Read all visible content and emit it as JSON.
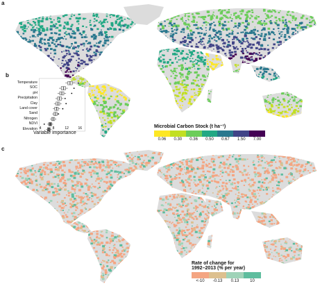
{
  "panels": {
    "a": {
      "letter": "a"
    },
    "b": {
      "letter": "b"
    },
    "c": {
      "letter": "c"
    }
  },
  "colors": {
    "land_background": "#dcdcdc",
    "stock_palette": [
      "#fde725",
      "#c2df23",
      "#6ccd5a",
      "#22a884",
      "#2a788e",
      "#414487",
      "#440154"
    ],
    "change_palette": [
      "#f4a582",
      "#ddc08f",
      "#9fd3b8",
      "#5ebd9e"
    ]
  },
  "stock_legend": {
    "title": "Microbial Carbon Stock (t ha⁻¹)",
    "ticks": [
      "0.06",
      "0.30",
      "0.36",
      "0.50",
      "0.67",
      "1.50",
      "7.00"
    ]
  },
  "change_legend": {
    "title_line1": "Rate of change for",
    "title_line2": "1992–2013 (% per year)",
    "ticks": [
      "<-10",
      "-0.13",
      "0.13",
      "10"
    ]
  },
  "importance": {
    "variables": [
      "Temperature",
      "SOC",
      "pH",
      "Precipitation",
      "Clay",
      "Land cover",
      "Sand",
      "Nitrogen",
      "NDVI",
      "Elevation"
    ],
    "medians": [
      13.0,
      11.0,
      10.5,
      9.8,
      9.3,
      8.9,
      8.6,
      7.9,
      7.0,
      6.6
    ],
    "outliers": [
      15.5,
      14.2,
      13.5,
      11.5,
      11.8,
      10.8,
      9.5,
      null,
      5.2,
      null
    ],
    "x_ticks": [
      "4",
      "8",
      "12",
      "16"
    ],
    "x_range": [
      4,
      17
    ],
    "x_label": "Variable importance"
  }
}
